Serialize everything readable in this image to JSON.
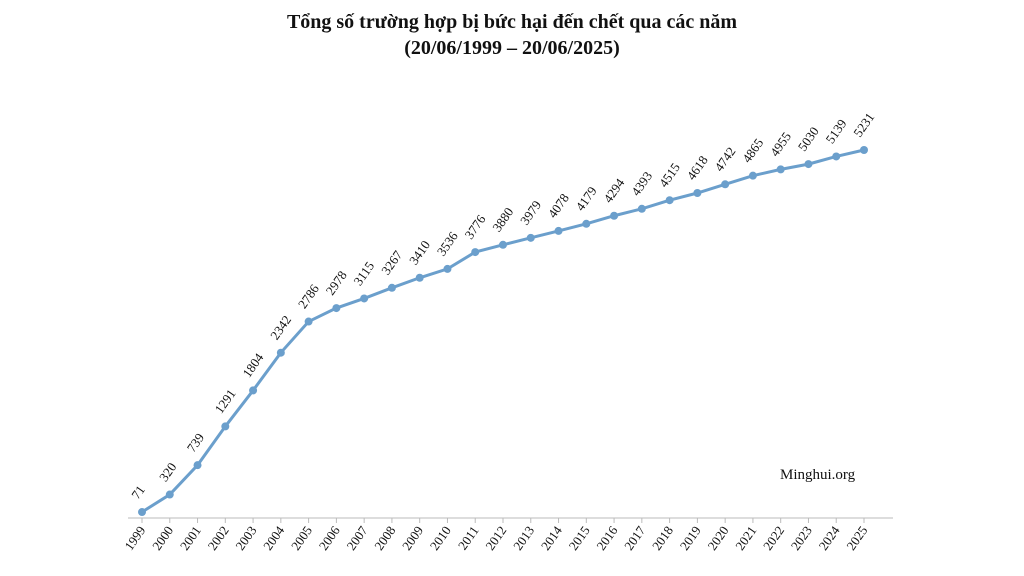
{
  "chart_data": {
    "type": "line",
    "title": "Tổng số trường hợp bị bức hại đến chết qua các năm",
    "subtitle": "(20/06/1999 – 20/06/2025)",
    "source": "Minghui.org",
    "categories": [
      "1999",
      "2000",
      "2001",
      "2002",
      "2003",
      "2004",
      "2005",
      "2006",
      "2007",
      "2008",
      "2009",
      "2010",
      "2011",
      "2012",
      "2013",
      "2014",
      "2015",
      "2016",
      "2017",
      "2018",
      "2019",
      "2020",
      "2021",
      "2022",
      "2023",
      "2024",
      "2025"
    ],
    "series": [
      {
        "name": "Tổng số trường hợp",
        "color": "#6b9fcc",
        "values": [
          71,
          320,
          739,
          1291,
          1804,
          2342,
          2786,
          2978,
          3115,
          3267,
          3410,
          3536,
          3776,
          3880,
          3979,
          4078,
          4179,
          4294,
          4393,
          4515,
          4618,
          4742,
          4865,
          4955,
          5030,
          5139,
          5231
        ]
      }
    ]
  }
}
